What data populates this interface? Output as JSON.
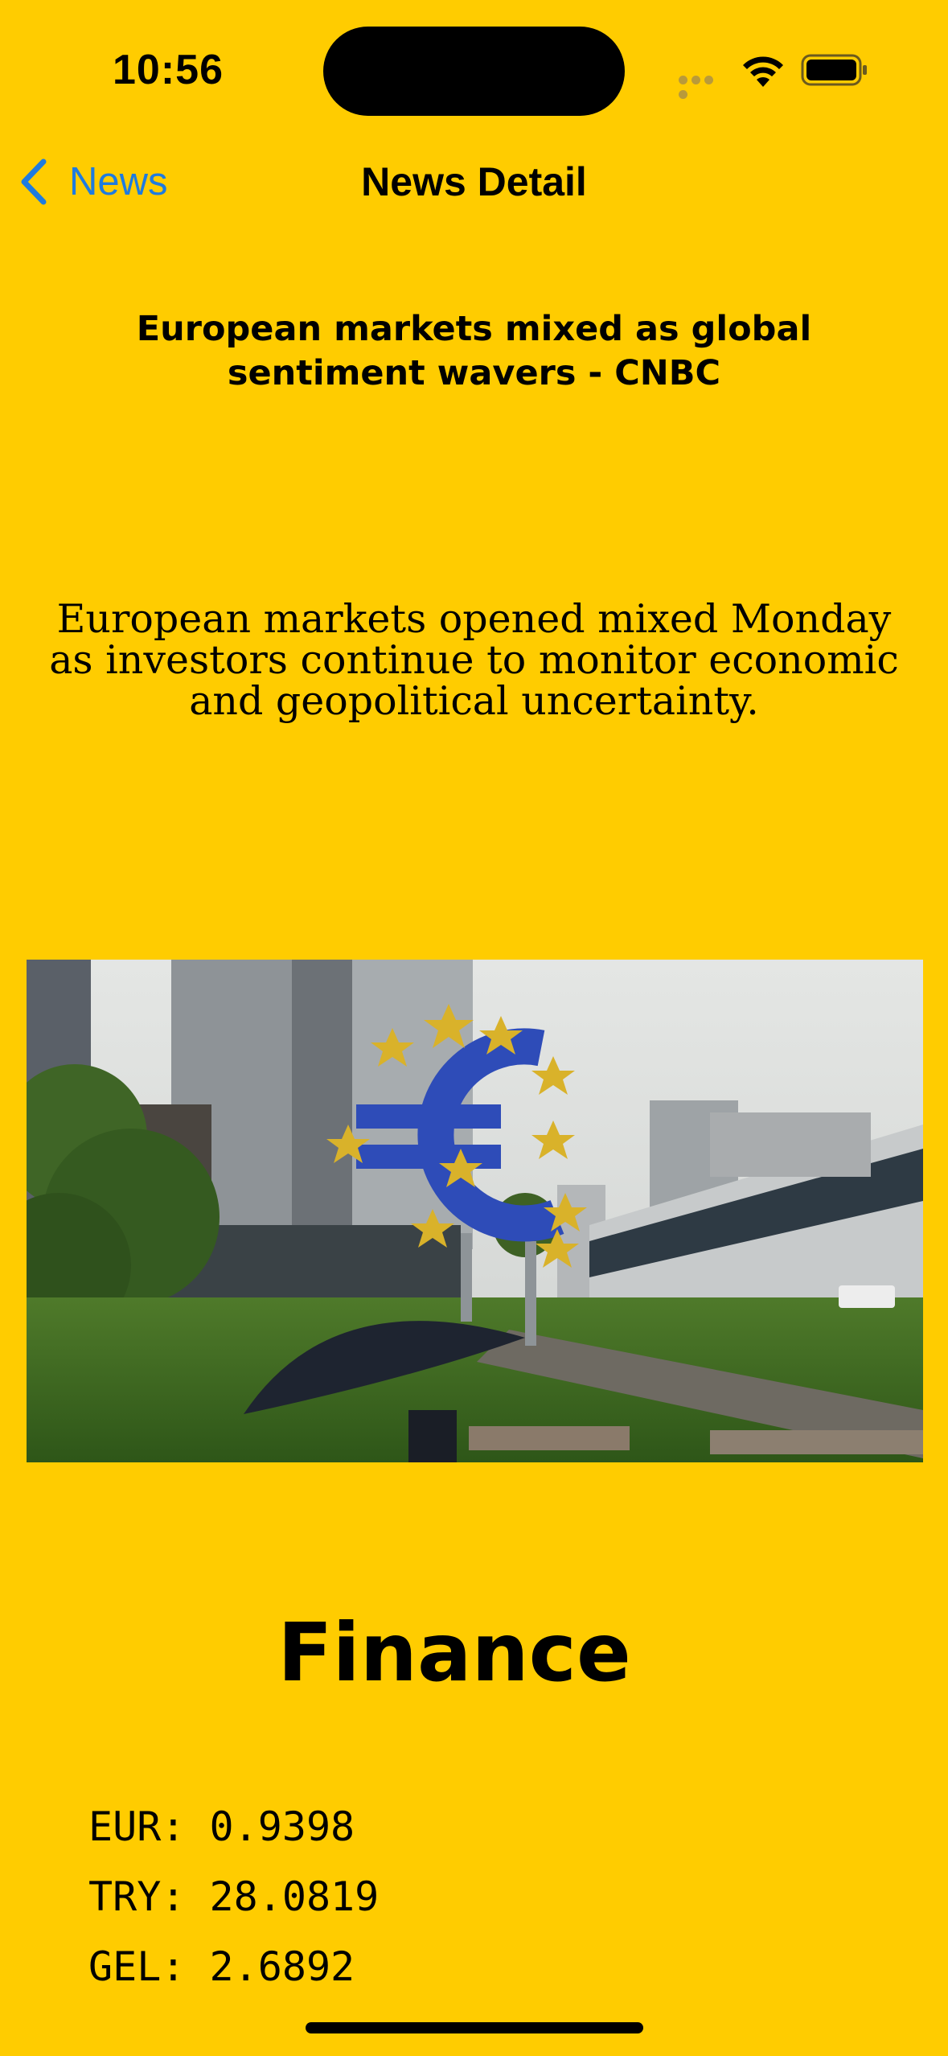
{
  "status_bar": {
    "time": "10:56"
  },
  "nav": {
    "back_label": "News",
    "title": "News Detail"
  },
  "article": {
    "headline": "European markets mixed as global sentiment wavers - CNBC",
    "summary": "European markets opened mixed Monday as investors continue to monitor economic and geopolitical uncertainty."
  },
  "finance": {
    "title": "Finance",
    "rates": [
      {
        "code": "EUR",
        "value": "0.9398"
      },
      {
        "code": "TRY",
        "value": "28.0819"
      },
      {
        "code": "GEL",
        "value": "2.6892"
      }
    ]
  },
  "colors": {
    "background": "#FFCC00",
    "accent": "#1E7BE0",
    "text": "#000000"
  }
}
